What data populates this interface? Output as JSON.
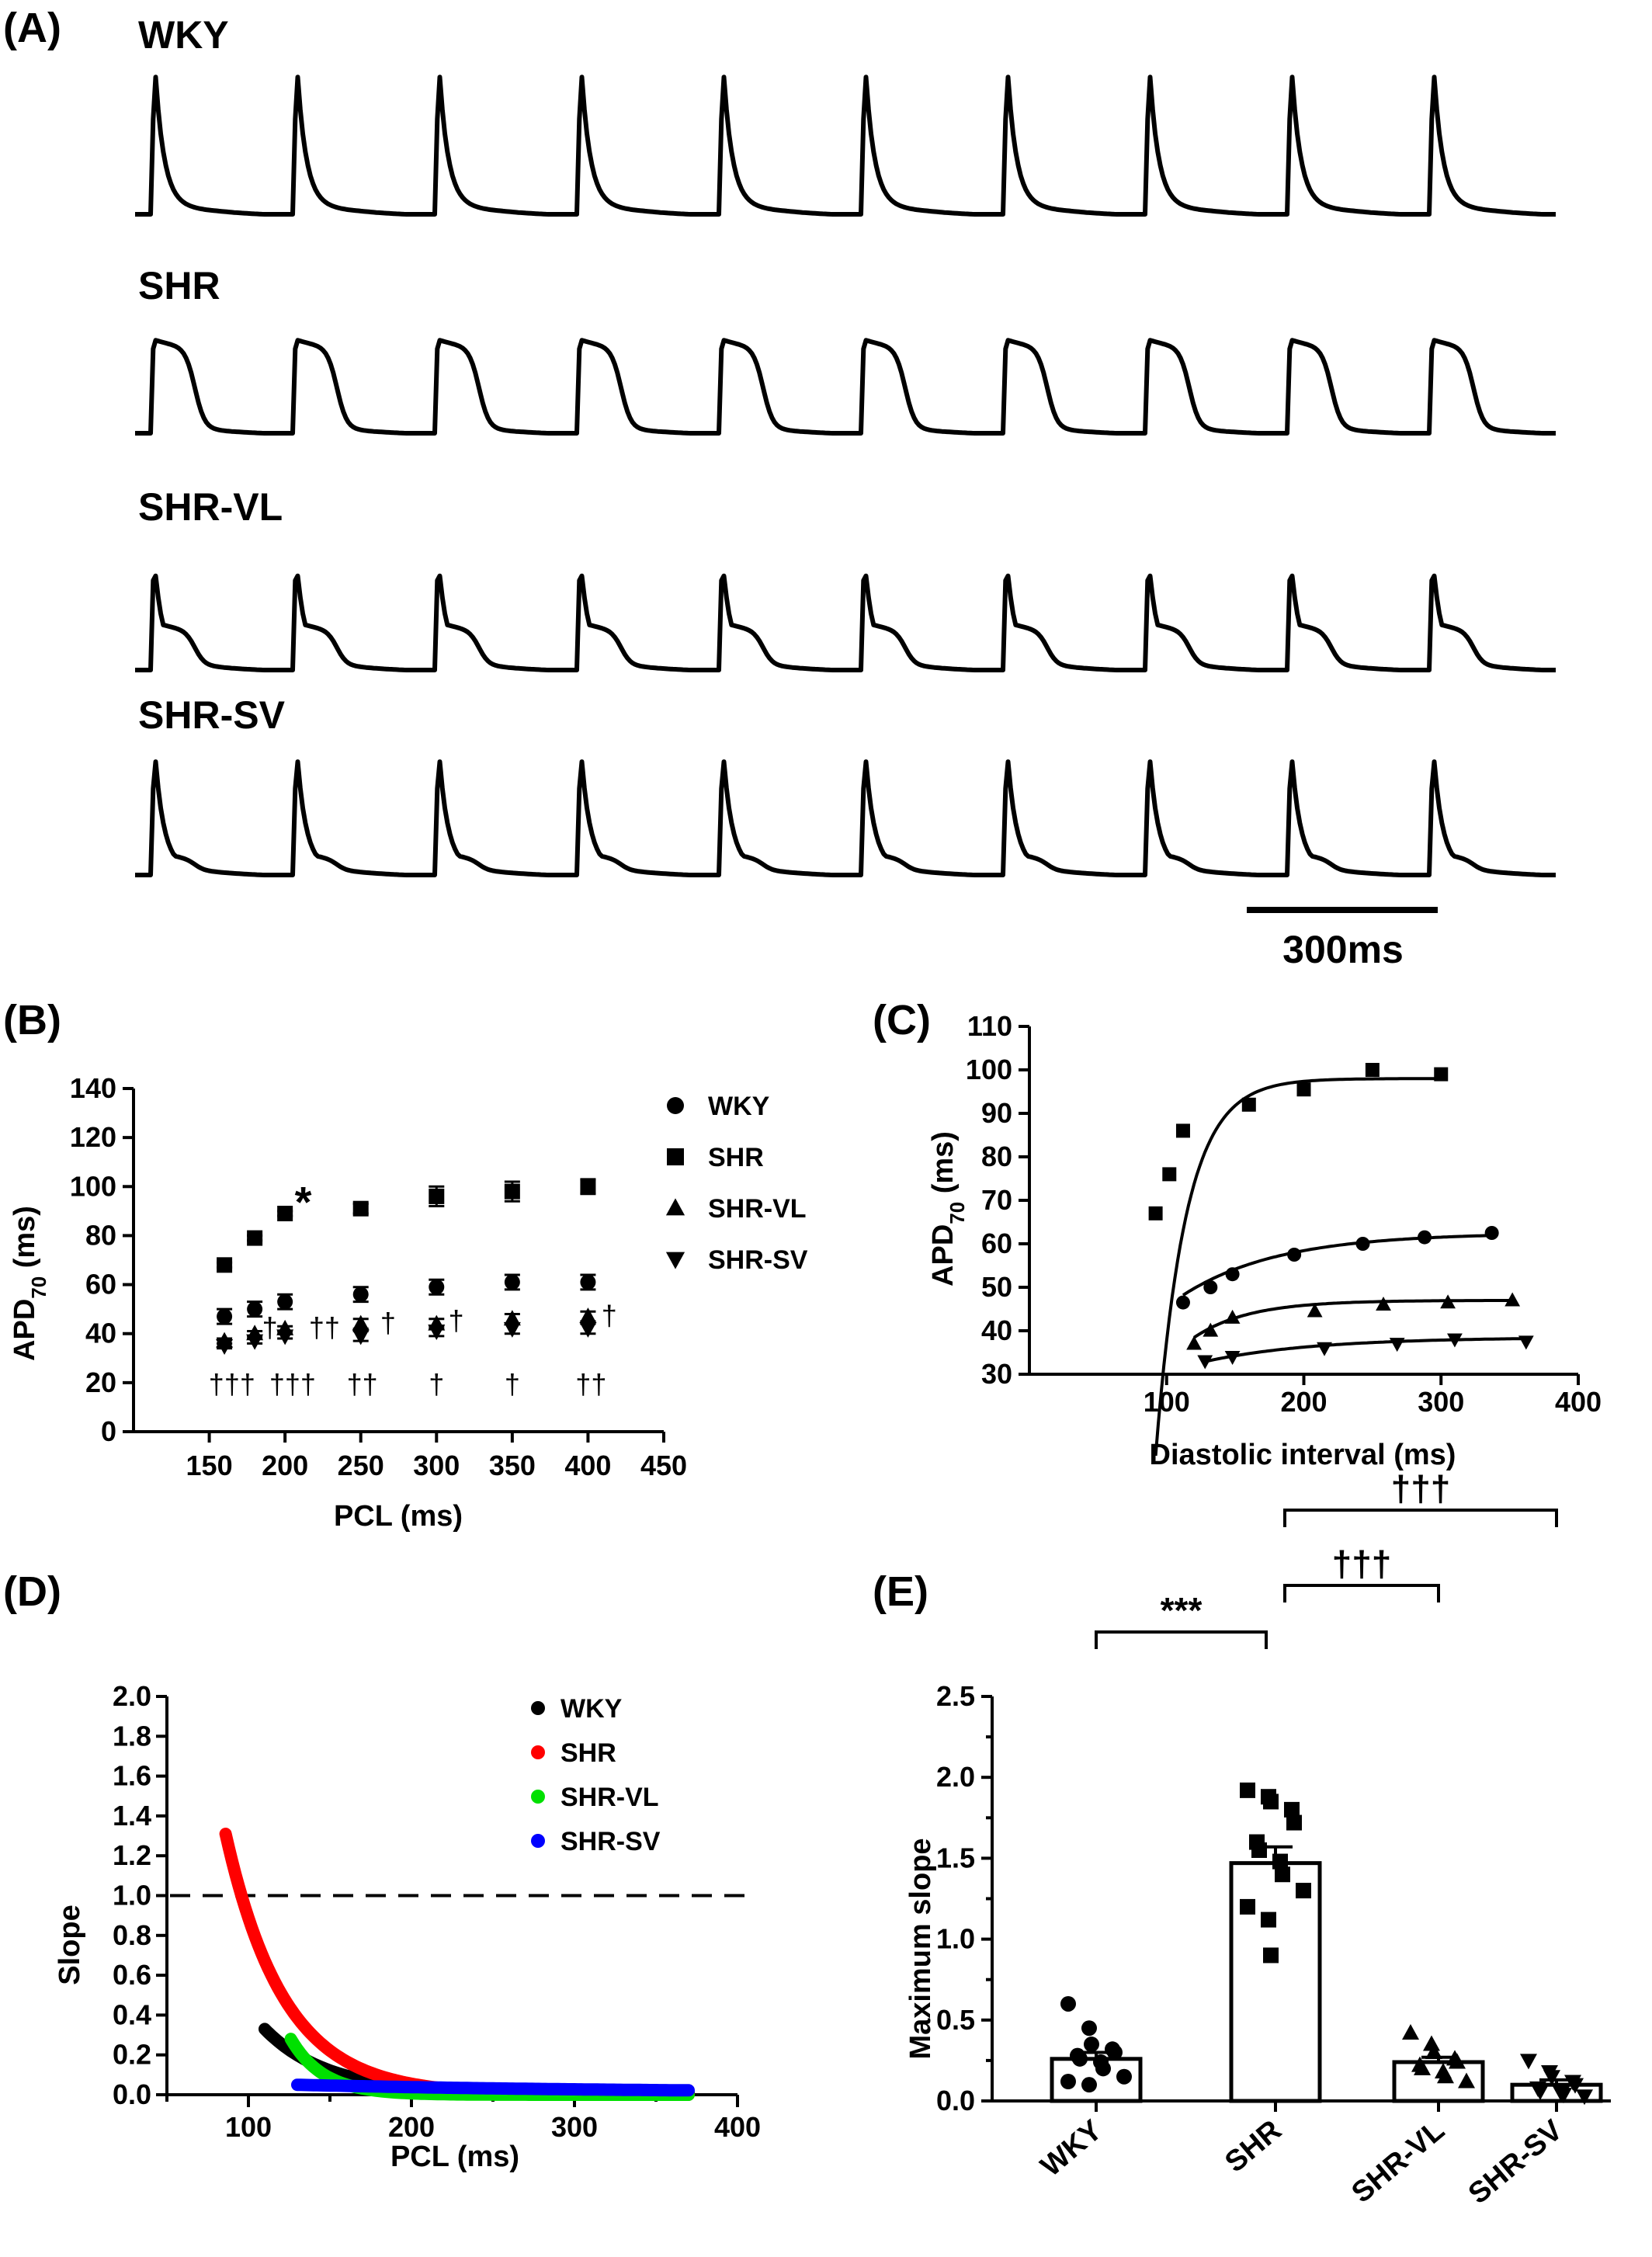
{
  "panel_A": {
    "label": "(A)",
    "traces": [
      {
        "name": "WKY",
        "plateau": 0.0
      },
      {
        "name": "SHR",
        "plateau": 0.75
      },
      {
        "name": "SHR-VL",
        "plateau": 0.3
      },
      {
        "name": "SHR-SV",
        "plateau": 0.1
      }
    ],
    "beats_per_trace": 10,
    "scalebar": "300ms"
  },
  "chart_data": [
    {
      "panel": "B",
      "panel_label": "(B)",
      "type": "scatter",
      "xlabel": "PCL (ms)",
      "ylabel": "APD",
      "ylabel_sub": "70",
      "ylabel_unit": " (ms)",
      "xlim": [
        100,
        450
      ],
      "ylim": [
        0,
        140
      ],
      "xticks": [
        "150",
        "200",
        "250",
        "300",
        "350",
        "400",
        "450"
      ],
      "yticks": [
        "0",
        "20",
        "40",
        "60",
        "80",
        "100",
        "120",
        "140"
      ],
      "legend_position": "right",
      "series": [
        {
          "name": "WKY",
          "marker": "circle",
          "x": [
            160,
            180,
            200,
            250,
            300,
            350,
            400
          ],
          "y": [
            47,
            50,
            53,
            56,
            59,
            61,
            61
          ],
          "err": [
            3,
            3,
            3,
            3,
            3,
            3,
            3
          ]
        },
        {
          "name": "SHR",
          "marker": "square",
          "x": [
            160,
            180,
            200,
            250,
            300,
            350,
            400
          ],
          "y": [
            68,
            79,
            89,
            91,
            96,
            98,
            100
          ],
          "err": [
            1,
            1,
            1,
            2,
            4,
            4,
            3
          ]
        },
        {
          "name": "SHR-VL",
          "marker": "triangle-up",
          "x": [
            160,
            180,
            200,
            250,
            300,
            350,
            400
          ],
          "y": [
            37,
            40,
            42,
            44,
            44,
            46,
            47
          ],
          "err": [
            1,
            1,
            1,
            2,
            2,
            2,
            2
          ]
        },
        {
          "name": "SHR-SV",
          "marker": "triangle-down",
          "x": [
            160,
            180,
            200,
            250,
            300,
            350,
            400
          ],
          "y": [
            35,
            37,
            39,
            39,
            41,
            42,
            42
          ],
          "err": [
            1,
            1,
            1,
            2,
            2,
            2,
            2
          ]
        }
      ],
      "annotations": [
        {
          "text": "*",
          "x": 212,
          "y": 92
        },
        {
          "text": "†",
          "x": 190,
          "y": 43
        },
        {
          "text": "††",
          "x": 226,
          "y": 43
        },
        {
          "text": "†",
          "x": 268,
          "y": 45
        },
        {
          "text": "†",
          "x": 313,
          "y": 46
        },
        {
          "text": "†",
          "x": 414,
          "y": 48
        },
        {
          "text": "†††",
          "x": 165,
          "y": 20
        },
        {
          "text": "†††",
          "x": 205,
          "y": 20
        },
        {
          "text": "††",
          "x": 251,
          "y": 20
        },
        {
          "text": "†",
          "x": 300,
          "y": 20
        },
        {
          "text": "†",
          "x": 350,
          "y": 20
        },
        {
          "text": "††",
          "x": 402,
          "y": 20
        }
      ]
    },
    {
      "panel": "C",
      "panel_label": "(C)",
      "type": "scatter",
      "xlabel": "Diastolic interval (ms)",
      "ylabel": "APD",
      "ylabel_sub": "70",
      "ylabel_unit": " (ms)",
      "xlim": [
        0,
        400
      ],
      "ylim": [
        30,
        110
      ],
      "xticks": [
        "100",
        "200",
        "300",
        "400"
      ],
      "yticks": [
        "30",
        "40",
        "50",
        "60",
        "70",
        "80",
        "90",
        "100",
        "110"
      ],
      "series": [
        {
          "marker": "square",
          "x": [
            92,
            102,
            112,
            160,
            200,
            250,
            300
          ],
          "y": [
            67,
            76,
            86,
            92,
            95.5,
            100,
            99
          ],
          "fit": {
            "a": 98,
            "b": 95,
            "tau": 22,
            "x0": 90,
            "from": 92,
            "to": 300
          }
        },
        {
          "marker": "circle",
          "x": [
            112,
            132,
            148,
            193,
            243,
            288,
            337
          ],
          "y": [
            46.5,
            50,
            53,
            57.5,
            60,
            61.5,
            62.5
          ],
          "fit": {
            "a": 62.5,
            "b": 17,
            "tau": 70,
            "x0": 100,
            "from": 112,
            "to": 337
          }
        },
        {
          "marker": "triangle-up",
          "x": [
            120,
            132,
            148,
            208,
            258,
            305,
            352
          ],
          "y": [
            37,
            40,
            43,
            44.5,
            46,
            46.5,
            47
          ],
          "fit": {
            "a": 47,
            "b": 11,
            "tau": 40,
            "x0": 110,
            "from": 120,
            "to": 352
          }
        },
        {
          "marker": "triangle-down",
          "x": [
            128,
            148,
            215,
            268,
            310,
            362
          ],
          "y": [
            33,
            34,
            36,
            37,
            38,
            37.5
          ],
          "fit": {
            "a": 38.5,
            "b": 7,
            "tau": 80,
            "x0": 110,
            "from": 128,
            "to": 362
          }
        }
      ]
    },
    {
      "panel": "D",
      "panel_label": "(D)",
      "type": "line",
      "xlabel": "PCL (ms)",
      "ylabel": "Slope",
      "xlim": [
        50,
        400
      ],
      "ylim": [
        0,
        2.0
      ],
      "xticks": [
        "100",
        "200",
        "300",
        "400"
      ],
      "yticks": [
        "0.0",
        "0.2",
        "0.4",
        "0.6",
        "0.8",
        "1.0",
        "1.2",
        "1.4",
        "1.6",
        "1.8",
        "2.0"
      ],
      "reference_line": 1.0,
      "legend_position": "top-right",
      "series": [
        {
          "name": "WKY",
          "color": "#000000",
          "x_start": 110,
          "x_end": 370,
          "y0": 0.33,
          "tau": 38,
          "c": 0.01
        },
        {
          "name": "SHR",
          "color": "#ff0000",
          "x_start": 86,
          "x_end": 370,
          "y0": 1.31,
          "tau": 36,
          "c": 0.0
        },
        {
          "name": "SHR-VL",
          "color": "#00e000",
          "x_start": 126,
          "x_end": 370,
          "y0": 0.28,
          "tau": 20,
          "c": 0.0
        },
        {
          "name": "SHR-SV",
          "color": "#0000ff",
          "x_start": 130,
          "x_end": 370,
          "y0": 0.05,
          "tau": 200,
          "c": 0.01
        }
      ]
    },
    {
      "panel": "E",
      "panel_label": "(E)",
      "type": "bar",
      "ylabel": "Maximum slope",
      "ylim": [
        0,
        2.5
      ],
      "yticks": [
        "0.0",
        "0.5",
        "1.0",
        "1.5",
        "2.0",
        "2.5"
      ],
      "categories": [
        "WKY",
        "SHR",
        "SHR-VL",
        "SHR-SV"
      ],
      "values": [
        0.26,
        1.47,
        0.24,
        0.1
      ],
      "errors": [
        0.04,
        0.1,
        0.03,
        0.03
      ],
      "markers": [
        "circle",
        "square",
        "triangle-up",
        "triangle-down"
      ],
      "points": [
        [
          0.6,
          0.45,
          0.35,
          0.32,
          0.3,
          0.28,
          0.26,
          0.24,
          0.2,
          0.15,
          0.12,
          0.1
        ],
        [
          1.92,
          1.88,
          1.85,
          1.8,
          1.72,
          1.6,
          1.55,
          1.48,
          1.4,
          1.3,
          1.2,
          1.12,
          0.9
        ],
        [
          0.42,
          0.35,
          0.3,
          0.26,
          0.24,
          0.22,
          0.2,
          0.18,
          0.15,
          0.12
        ],
        [
          0.25,
          0.18,
          0.15,
          0.12,
          0.1,
          0.08,
          0.06,
          0.05,
          0.04,
          0.03
        ]
      ],
      "comparisons": [
        {
          "from": 0,
          "to": 1,
          "label": "***"
        },
        {
          "from": 1,
          "to": 2,
          "label": "†††"
        },
        {
          "from": 1,
          "to": 3,
          "label": "†††"
        }
      ]
    }
  ]
}
